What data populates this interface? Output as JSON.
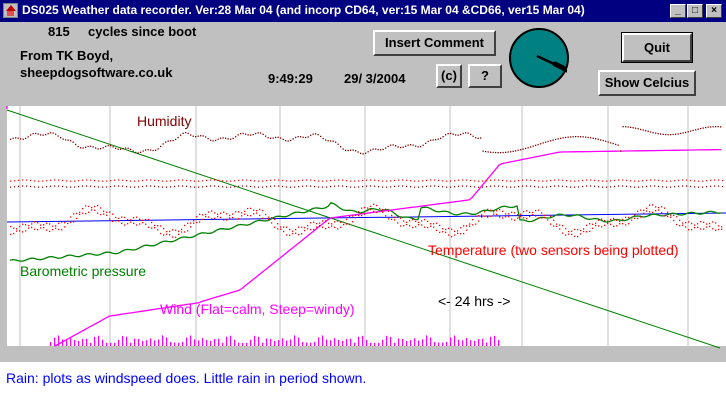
{
  "window": {
    "title": "DS025 Weather data recorder. Ver:28 Mar 04 (and incorp CD64, ver:15 Mar 04 &CD66, ver15 Mar 04)",
    "controls": {
      "minimize": "_",
      "maximize": "□",
      "close": "×"
    }
  },
  "status": {
    "cycles_count": "815",
    "cycles_label": "cycles since boot",
    "author_line1": "From TK Boyd,",
    "author_line2": "sheepdogsoftware.co.uk",
    "time": "9:49:29",
    "date": "29/ 3/2004"
  },
  "buttons": {
    "insert_comment": "Insert Comment",
    "copyright": "(c)",
    "help": "?",
    "quit": "Quit",
    "show_celcius": "Show Celcius"
  },
  "gauge": {
    "colors": {
      "face": "#008080",
      "needle": "#000000"
    }
  },
  "chart_data": {
    "type": "line",
    "annotations": {
      "humidity": "Humidity",
      "barometric": "Barometric pressure",
      "temperature": "Temperature (two sensors being plotted)",
      "wind": "Wind (Flat=calm, Steep=windy)",
      "span": "<- 24 hrs ->"
    },
    "series_colors": {
      "humidity": "#800000",
      "barometric": "#008000",
      "temperature": "#ff0000",
      "wind": "#ff00ff",
      "reference": "#0000ff",
      "diagonal": "#008000",
      "gridlines": "#c0c0c0",
      "rain": "#ff00ff"
    }
  },
  "caption": "Rain: plots as windspeed does. Little rain in period shown."
}
